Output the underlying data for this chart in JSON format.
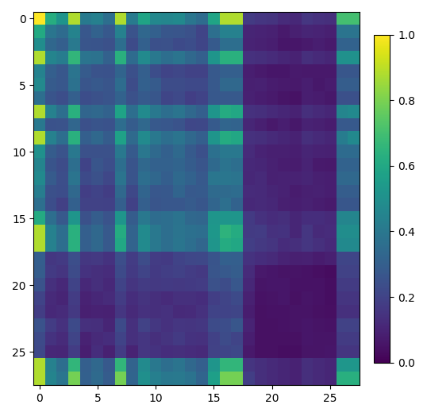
{
  "matrix_size": 28,
  "cmap": "viridis",
  "vmin": 0.0,
  "vmax": 1.0,
  "colorbar_ticks": [
    0.0,
    0.2,
    0.4,
    0.6,
    0.8,
    1.0
  ],
  "xticks": [
    0,
    5,
    10,
    15,
    20,
    25
  ],
  "yticks": [
    0,
    5,
    10,
    15,
    20,
    25
  ],
  "figsize": [
    5.38,
    5.24
  ],
  "dpi": 100,
  "row_weights": [
    1.0,
    0.55,
    0.45,
    0.72,
    0.38,
    0.42,
    0.35,
    0.65,
    0.4,
    0.6,
    0.5,
    0.45,
    0.48,
    0.42,
    0.38,
    0.65,
    0.7,
    0.68,
    0.3,
    0.28,
    0.25,
    0.22,
    0.2,
    0.28,
    0.25,
    0.22,
    0.75,
    0.9
  ],
  "col_weights": [
    1.0,
    0.55,
    0.45,
    0.72,
    0.38,
    0.42,
    0.35,
    0.65,
    0.4,
    0.6,
    0.5,
    0.45,
    0.48,
    0.42,
    0.38,
    0.65,
    0.7,
    0.68,
    0.3,
    0.28,
    0.25,
    0.22,
    0.2,
    0.28,
    0.25,
    0.22,
    0.75,
    0.9
  ]
}
